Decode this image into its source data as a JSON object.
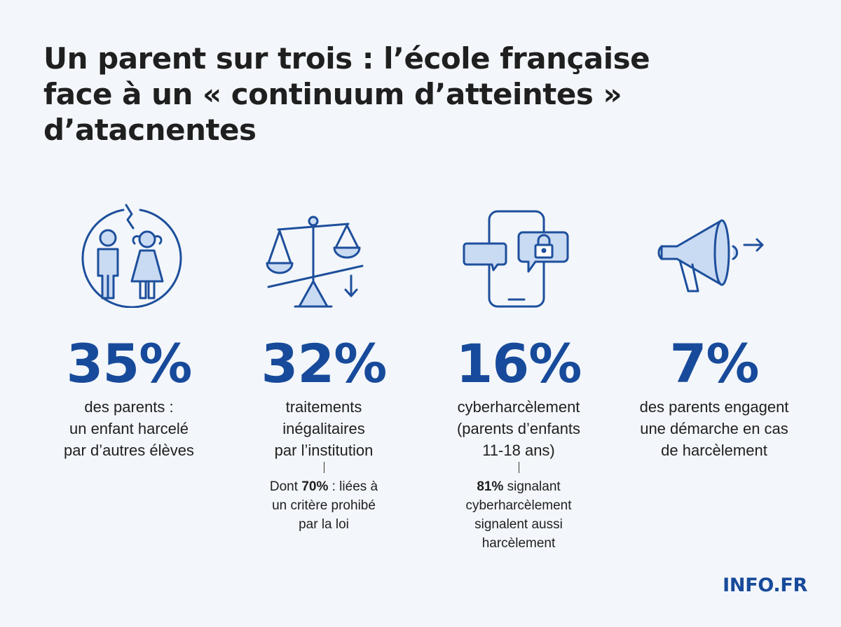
{
  "title": {
    "line1": "Un parent sur trois : l’école française",
    "line2": "face à un « continuum d’atteintes »",
    "line3": "d’atacnentes"
  },
  "colors": {
    "accent": "#174a9a",
    "icon_stroke": "#1d4f9c",
    "icon_fill": "#c9daf3",
    "background": "#f3f6fa",
    "text": "#1f1f1f"
  },
  "stats": [
    {
      "icon": "children-broken-circle-icon",
      "value": "35%",
      "desc_lines": [
        "des parents :",
        "un enfant harcelé",
        "par d’autres élèves"
      ]
    },
    {
      "icon": "unbalanced-scale-icon",
      "value": "32%",
      "desc_lines": [
        "traitements",
        "inégalitaires",
        "par l’institution"
      ],
      "note": {
        "prefix": "Dont ",
        "bold": "70%",
        "rest": " : liées à",
        "line2": "un critère prohibé",
        "line3": "par la loi"
      }
    },
    {
      "icon": "smartphone-lock-chat-icon",
      "value": "16%",
      "desc_lines": [
        "cyberharcèlement",
        "(parents d’enfants",
        "11-18 ans)"
      ],
      "note": {
        "bold": "81%",
        "rest": " signalant",
        "line2": "cyberharcèlement",
        "line3": "signalent aussi",
        "line4": "harcèlement"
      }
    },
    {
      "icon": "megaphone-icon",
      "value": "7%",
      "desc_lines": [
        "des parents engagent",
        "une démarche en cas",
        "de harcèlement"
      ]
    }
  ],
  "brand": "INFO.FR"
}
